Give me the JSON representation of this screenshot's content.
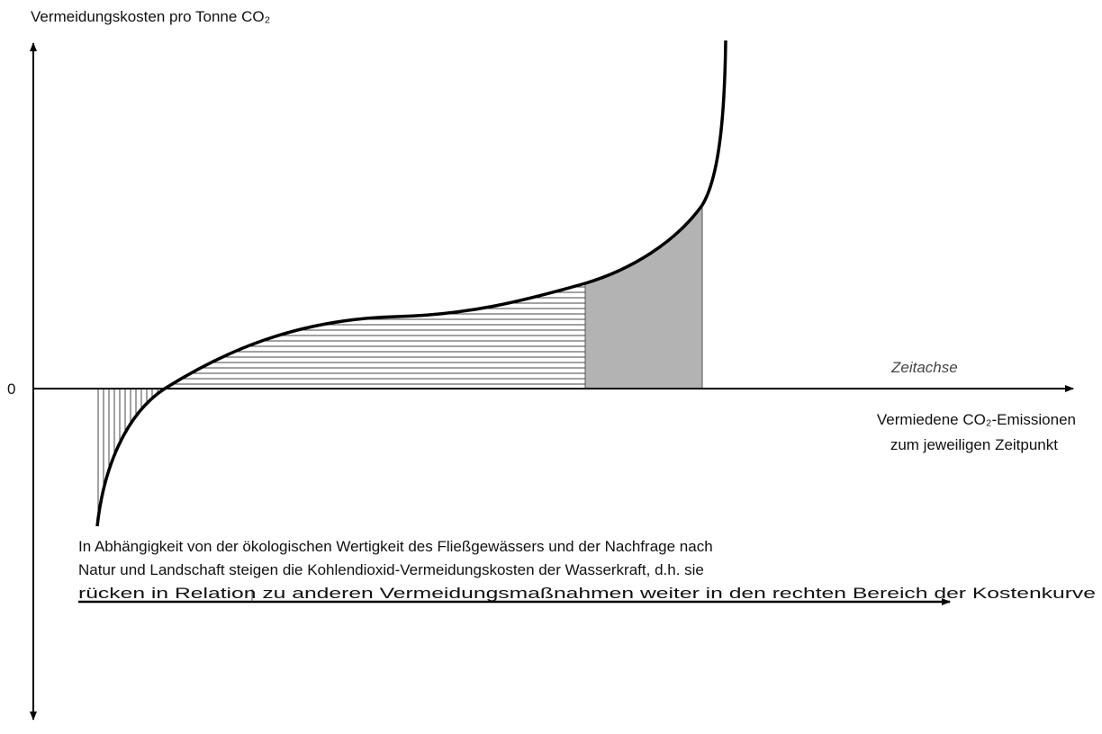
{
  "y_axis_label": "Vermeidungskosten pro Tonne CO₂",
  "zero_label": "0",
  "time_axis_label": "Zeitachse",
  "x_axis_label": [
    "Vermiedene CO₂-Emissionen",
    "zum jeweiligen Zeitpunkt"
  ],
  "caption": [
    "In Abhängigkeit von der ökologischen Wertigkeit des Fließgewässers und der Nachfrage nach",
    "Natur und Landschaft steigen die Kohlendioxid-Vermeidungskosten der Wasserkraft, d.h. sie",
    "rücken in Relation zu anderen Vermeidungsmaßnahmen weiter in den rechten Bereich der Kostenkurve"
  ]
}
